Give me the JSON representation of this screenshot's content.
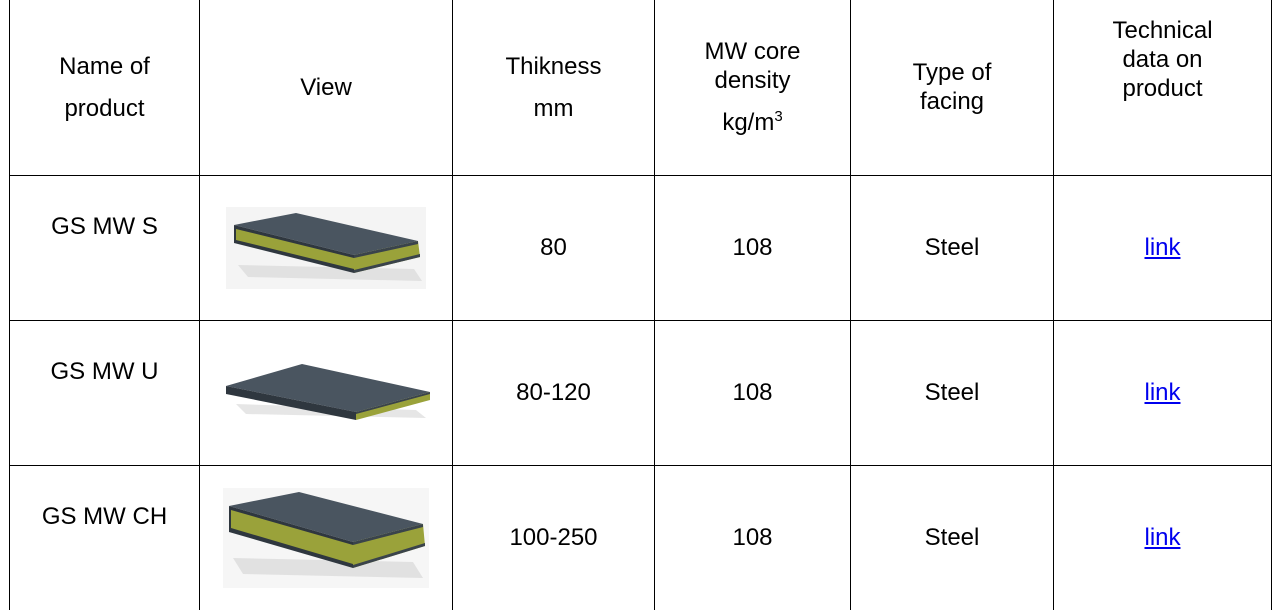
{
  "table": {
    "headers": {
      "name": [
        "Name of",
        "product"
      ],
      "view": "View",
      "thickness": [
        "Thikness",
        "mm"
      ],
      "density": [
        "MW core",
        "density",
        "kg/m",
        "3"
      ],
      "facing": [
        "Type of",
        "facing"
      ],
      "technical": [
        "Technical",
        "data on",
        "product"
      ]
    },
    "rows": [
      {
        "name": "GS MW S",
        "view_icon": "sandwich-panel-image",
        "thickness": "80",
        "density": "108",
        "facing": "Steel",
        "link": "link"
      },
      {
        "name": "GS MW U",
        "view_icon": "sandwich-panel-image",
        "thickness": "80-120",
        "density": "108",
        "facing": "Steel",
        "link": "link"
      },
      {
        "name": "GS MW CH",
        "view_icon": "sandwich-panel-image",
        "thickness": "100-250",
        "density": "108",
        "facing": "Steel",
        "link": "link"
      }
    ]
  },
  "colors": {
    "link": "#0000ee",
    "panel_face": "#4a5560",
    "mineral_wool": "#9aa23a"
  }
}
